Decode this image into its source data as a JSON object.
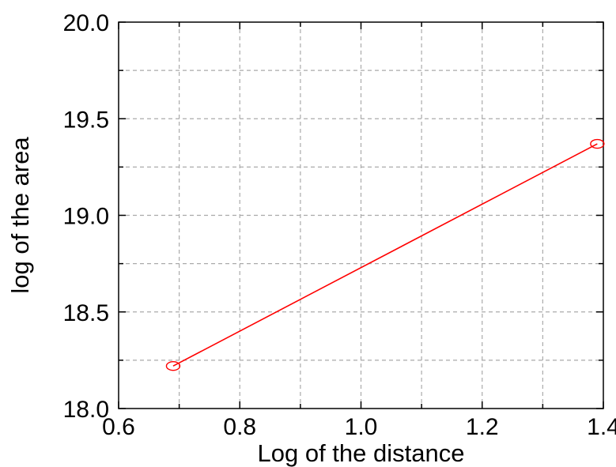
{
  "chart_data": {
    "type": "line",
    "xlabel": "Log of the distance",
    "ylabel": "log of the area",
    "xlim": [
      0.6,
      1.4
    ],
    "ylim": [
      18.0,
      20.0
    ],
    "x_ticks": [
      "0.6",
      "0.8",
      "1.0",
      "1.2",
      "1.4"
    ],
    "y_ticks": [
      "18.0",
      "18.5",
      "19.0",
      "19.5",
      "20.0"
    ],
    "grid": true,
    "series": [
      {
        "color": "#ff0000",
        "marker": "circle",
        "x": [
          0.69,
          1.39
        ],
        "y": [
          18.22,
          19.37
        ]
      }
    ]
  }
}
